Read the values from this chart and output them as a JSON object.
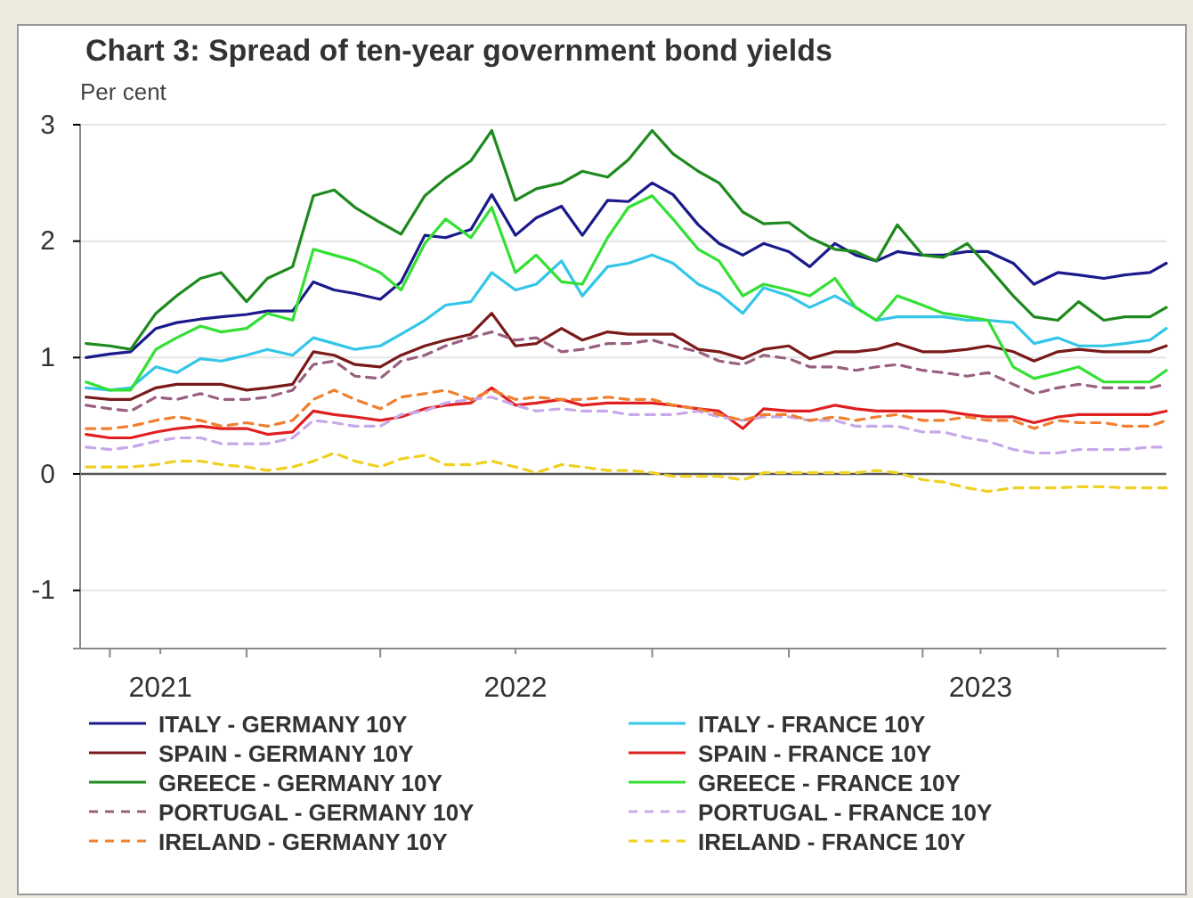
{
  "chart_data": {
    "type": "line",
    "title": "Chart 3: Spread of ten-year government bond yields",
    "ylabel": "Per cent",
    "x": [
      "2021-09-15",
      "2021-10-01",
      "2021-10-15",
      "2021-11-01",
      "2021-11-15",
      "2021-12-01",
      "2021-12-15",
      "2022-01-01",
      "2022-01-15",
      "2022-02-01",
      "2022-02-15",
      "2022-03-01",
      "2022-03-15",
      "2022-04-01",
      "2022-04-15",
      "2022-05-01",
      "2022-05-15",
      "2022-06-01",
      "2022-06-15",
      "2022-07-01",
      "2022-07-15",
      "2022-08-01",
      "2022-08-15",
      "2022-09-01",
      "2022-09-15",
      "2022-10-01",
      "2022-10-15",
      "2022-11-01",
      "2022-11-15",
      "2022-12-01",
      "2022-12-15",
      "2023-01-01",
      "2023-01-15",
      "2023-02-01",
      "2023-02-15",
      "2023-03-01",
      "2023-03-15",
      "2023-04-01",
      "2023-04-15",
      "2023-05-01",
      "2023-05-15",
      "2023-06-01",
      "2023-06-15",
      "2023-07-01",
      "2023-07-15",
      "2023-08-01",
      "2023-08-15",
      "2023-09-01",
      "2023-09-12"
    ],
    "xlim": [
      "2021-09-11",
      "2023-09-12"
    ],
    "xticks": [
      {
        "value": "2021-10-01",
        "label": null
      },
      {
        "value": "2021-11-04",
        "label": "2021"
      },
      {
        "value": "2022-01-01",
        "label": null
      },
      {
        "value": "2022-04-01",
        "label": null
      },
      {
        "value": "2022-07-01",
        "label": "2022"
      },
      {
        "value": "2022-10-01",
        "label": null
      },
      {
        "value": "2023-01-01",
        "label": null
      },
      {
        "value": "2023-04-01",
        "label": null
      },
      {
        "value": "2023-05-10",
        "label": "2023"
      },
      {
        "value": "2023-07-01",
        "label": null
      }
    ],
    "ylim": [
      -1.5,
      3
    ],
    "yticks": [
      -1,
      0,
      1,
      2,
      3
    ],
    "grid": "y",
    "legend": "bottom",
    "ref_lines": [
      {
        "axis": "y",
        "value": 0,
        "color": "#555555"
      }
    ],
    "series": [
      {
        "name": "ITALY - GERMANY 10Y",
        "color": "#1a1a8c",
        "line_style": "solid",
        "values": [
          1.0,
          1.03,
          1.05,
          1.25,
          1.3,
          1.33,
          1.35,
          1.37,
          1.4,
          1.4,
          1.65,
          1.58,
          1.55,
          1.5,
          1.65,
          2.05,
          2.03,
          2.1,
          2.4,
          2.05,
          2.2,
          2.3,
          2.05,
          2.35,
          2.34,
          2.5,
          2.4,
          2.14,
          1.98,
          1.88,
          1.98,
          1.91,
          1.78,
          1.98,
          1.88,
          1.83,
          1.91,
          1.88,
          1.88,
          1.91,
          1.91,
          1.81,
          1.63,
          1.73,
          1.71,
          1.68,
          1.71,
          1.73,
          1.81
        ]
      },
      {
        "name": "ITALY - FRANCE 10Y",
        "color": "#33c6e8",
        "line_style": "solid",
        "values": [
          0.74,
          0.72,
          0.74,
          0.92,
          0.87,
          0.99,
          0.97,
          1.02,
          1.07,
          1.02,
          1.17,
          1.12,
          1.07,
          1.1,
          1.2,
          1.32,
          1.45,
          1.48,
          1.73,
          1.58,
          1.63,
          1.83,
          1.53,
          1.78,
          1.81,
          1.88,
          1.81,
          1.63,
          1.55,
          1.38,
          1.6,
          1.53,
          1.43,
          1.53,
          1.43,
          1.32,
          1.35,
          1.35,
          1.35,
          1.32,
          1.32,
          1.3,
          1.12,
          1.17,
          1.1,
          1.1,
          1.12,
          1.15,
          1.25
        ]
      },
      {
        "name": "SPAIN - GERMANY 10Y",
        "color": "#7a1a1a",
        "line_style": "solid",
        "values": [
          0.66,
          0.64,
          0.64,
          0.74,
          0.77,
          0.77,
          0.77,
          0.72,
          0.74,
          0.77,
          1.05,
          1.02,
          0.94,
          0.92,
          1.02,
          1.1,
          1.15,
          1.2,
          1.38,
          1.1,
          1.12,
          1.25,
          1.15,
          1.22,
          1.2,
          1.2,
          1.2,
          1.07,
          1.05,
          0.99,
          1.07,
          1.1,
          0.99,
          1.05,
          1.05,
          1.07,
          1.12,
          1.05,
          1.05,
          1.07,
          1.1,
          1.05,
          0.97,
          1.05,
          1.07,
          1.05,
          1.05,
          1.05,
          1.1
        ]
      },
      {
        "name": "SPAIN - FRANCE 10Y",
        "color": "#e02020",
        "line_style": "solid",
        "values": [
          0.34,
          0.31,
          0.31,
          0.36,
          0.39,
          0.41,
          0.39,
          0.39,
          0.34,
          0.36,
          0.54,
          0.51,
          0.49,
          0.46,
          0.49,
          0.56,
          0.59,
          0.61,
          0.74,
          0.59,
          0.61,
          0.64,
          0.59,
          0.61,
          0.61,
          0.61,
          0.59,
          0.56,
          0.54,
          0.39,
          0.56,
          0.54,
          0.54,
          0.59,
          0.56,
          0.54,
          0.54,
          0.54,
          0.54,
          0.51,
          0.49,
          0.49,
          0.44,
          0.49,
          0.51,
          0.51,
          0.51,
          0.51,
          0.54
        ]
      },
      {
        "name": "GREECE - GERMANY 10Y",
        "color": "#1e8a1e",
        "line_style": "solid",
        "values": [
          1.12,
          1.1,
          1.07,
          1.38,
          1.53,
          1.68,
          1.73,
          1.48,
          1.68,
          1.78,
          2.39,
          2.44,
          2.29,
          2.16,
          2.06,
          2.39,
          2.54,
          2.69,
          2.95,
          2.35,
          2.45,
          2.5,
          2.6,
          2.55,
          2.7,
          2.95,
          2.75,
          2.6,
          2.5,
          2.25,
          2.15,
          2.16,
          2.03,
          1.93,
          1.91,
          1.83,
          2.14,
          1.88,
          1.86,
          1.98,
          1.78,
          1.53,
          1.35,
          1.32,
          1.48,
          1.32,
          1.35,
          1.35,
          1.43
        ]
      },
      {
        "name": "GREECE - FRANCE 10Y",
        "color": "#33e033",
        "line_style": "solid",
        "values": [
          0.79,
          0.72,
          0.72,
          1.07,
          1.17,
          1.27,
          1.22,
          1.25,
          1.38,
          1.32,
          1.93,
          1.88,
          1.83,
          1.73,
          1.58,
          1.98,
          2.19,
          2.03,
          2.29,
          1.73,
          1.88,
          1.65,
          1.63,
          2.03,
          2.29,
          2.39,
          2.19,
          1.93,
          1.83,
          1.53,
          1.63,
          1.58,
          1.53,
          1.68,
          1.43,
          1.32,
          1.53,
          1.45,
          1.38,
          1.35,
          1.32,
          0.92,
          0.82,
          0.87,
          0.92,
          0.79,
          0.79,
          0.79,
          0.89
        ]
      },
      {
        "name": "PORTUGAL - GERMANY 10Y",
        "color": "#9a6080",
        "line_style": "dashed",
        "values": [
          0.59,
          0.56,
          0.54,
          0.66,
          0.64,
          0.69,
          0.64,
          0.64,
          0.66,
          0.72,
          0.94,
          0.97,
          0.84,
          0.82,
          0.97,
          1.02,
          1.1,
          1.17,
          1.22,
          1.15,
          1.17,
          1.05,
          1.07,
          1.12,
          1.12,
          1.15,
          1.1,
          1.05,
          0.97,
          0.94,
          1.02,
          0.99,
          0.92,
          0.92,
          0.89,
          0.92,
          0.94,
          0.89,
          0.87,
          0.84,
          0.87,
          0.77,
          0.69,
          0.74,
          0.77,
          0.74,
          0.74,
          0.74,
          0.77
        ]
      },
      {
        "name": "PORTUGAL - FRANCE 10Y",
        "color": "#c8a8e8",
        "line_style": "dashed",
        "values": [
          0.23,
          0.21,
          0.23,
          0.28,
          0.31,
          0.31,
          0.26,
          0.26,
          0.26,
          0.31,
          0.46,
          0.44,
          0.41,
          0.41,
          0.51,
          0.54,
          0.61,
          0.64,
          0.66,
          0.59,
          0.54,
          0.56,
          0.54,
          0.54,
          0.51,
          0.51,
          0.51,
          0.54,
          0.49,
          0.46,
          0.49,
          0.49,
          0.46,
          0.46,
          0.41,
          0.41,
          0.41,
          0.36,
          0.36,
          0.31,
          0.28,
          0.21,
          0.18,
          0.18,
          0.21,
          0.21,
          0.21,
          0.23,
          0.23
        ]
      },
      {
        "name": "IRELAND - GERMANY 10Y",
        "color": "#f08030",
        "line_style": "dashed",
        "values": [
          0.39,
          0.39,
          0.41,
          0.46,
          0.49,
          0.46,
          0.41,
          0.44,
          0.41,
          0.46,
          0.64,
          0.72,
          0.64,
          0.56,
          0.66,
          0.69,
          0.72,
          0.64,
          0.72,
          0.64,
          0.66,
          0.64,
          0.64,
          0.66,
          0.64,
          0.64,
          0.59,
          0.56,
          0.51,
          0.46,
          0.51,
          0.51,
          0.46,
          0.49,
          0.46,
          0.49,
          0.51,
          0.46,
          0.46,
          0.49,
          0.46,
          0.46,
          0.39,
          0.46,
          0.44,
          0.44,
          0.41,
          0.41,
          0.46
        ]
      },
      {
        "name": "IRELAND - FRANCE 10Y",
        "color": "#f0d020",
        "line_style": "dashed",
        "values": [
          0.06,
          0.06,
          0.06,
          0.08,
          0.11,
          0.11,
          0.08,
          0.06,
          0.03,
          0.06,
          0.11,
          0.18,
          0.11,
          0.06,
          0.13,
          0.16,
          0.08,
          0.08,
          0.11,
          0.06,
          0.01,
          0.08,
          0.06,
          0.03,
          0.03,
          0.01,
          -0.02,
          -0.02,
          -0.02,
          -0.05,
          0.01,
          0.01,
          0.01,
          0.01,
          0.01,
          0.03,
          0.01,
          -0.05,
          -0.07,
          -0.12,
          -0.15,
          -0.12,
          -0.12,
          -0.12,
          -0.11,
          -0.11,
          -0.12,
          -0.12,
          -0.12
        ]
      }
    ]
  }
}
